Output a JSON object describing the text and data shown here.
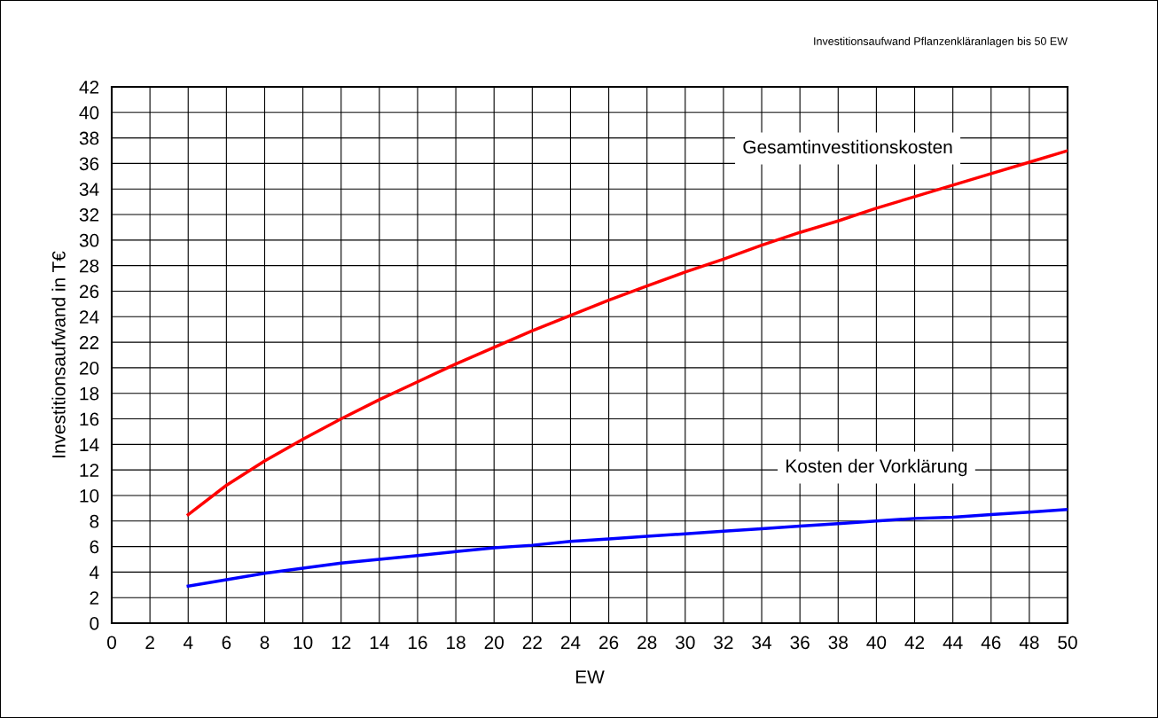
{
  "chart_data": {
    "type": "line",
    "title": "Investitionsaufwand Pflanzenkläranlagen bis 50 EW",
    "xlabel": "EW",
    "ylabel": "Investitionsaufwand in T€",
    "x": [
      4,
      6,
      8,
      10,
      12,
      14,
      16,
      18,
      20,
      22,
      24,
      26,
      28,
      30,
      32,
      34,
      36,
      38,
      40,
      42,
      44,
      46,
      48,
      50
    ],
    "series": [
      {
        "name": "Gesamtinvestitionskosten",
        "color": "#ff0000",
        "values": [
          8.5,
          10.8,
          12.7,
          14.4,
          16.0,
          17.5,
          18.9,
          20.3,
          21.6,
          22.9,
          24.1,
          25.3,
          26.4,
          27.5,
          28.5,
          29.6,
          30.6,
          31.5,
          32.5,
          33.4,
          34.3,
          35.2,
          36.1,
          37.0
        ]
      },
      {
        "name": "Kosten der Vorklärung",
        "color": "#0000ff",
        "values": [
          2.9,
          3.4,
          3.9,
          4.3,
          4.7,
          5.0,
          5.3,
          5.6,
          5.9,
          6.1,
          6.4,
          6.6,
          6.8,
          7.0,
          7.2,
          7.4,
          7.6,
          7.8,
          8.0,
          8.2,
          8.3,
          8.5,
          8.7,
          8.9
        ]
      }
    ],
    "xlim": [
      0,
      50
    ],
    "xticks": [
      0,
      2,
      4,
      6,
      8,
      10,
      12,
      14,
      16,
      18,
      20,
      22,
      24,
      26,
      28,
      30,
      32,
      34,
      36,
      38,
      40,
      42,
      44,
      46,
      48,
      50
    ],
    "ylim": [
      0,
      42
    ],
    "yticks": [
      0,
      2,
      4,
      6,
      8,
      10,
      12,
      14,
      16,
      18,
      20,
      22,
      24,
      26,
      28,
      30,
      32,
      34,
      36,
      38,
      40,
      42
    ],
    "grid": true,
    "legend": false,
    "marker": "none",
    "line_style": "solid"
  }
}
